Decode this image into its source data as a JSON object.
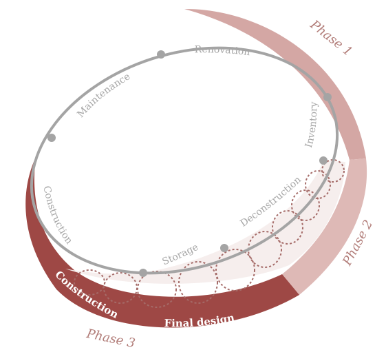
{
  "diagram": {
    "nodes": [
      "Renovation",
      "Inventory",
      "Deconstruction",
      "Storage",
      "Construction",
      "Maintenance"
    ],
    "phases": [
      "Phase 1",
      "Phase 2",
      "Phase 3"
    ],
    "band_labels": [
      "Construction",
      "Final design"
    ],
    "colors": {
      "cycle": "#a4a4a4",
      "phase1": "#d4a7a4",
      "phase2": "#deb9b6",
      "phase3": "#9e4845",
      "dotted": "#a56b68",
      "phase_text": "#b27d79"
    }
  }
}
